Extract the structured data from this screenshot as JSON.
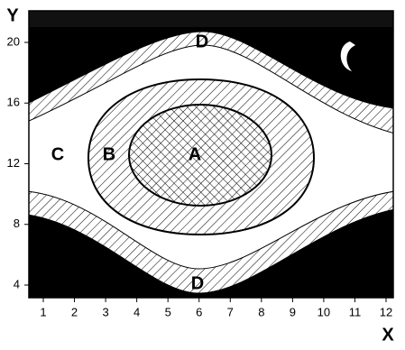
{
  "axes": {
    "x_label": "X",
    "y_label": "Y",
    "xticks": [
      1,
      2,
      3,
      4,
      5,
      6,
      7,
      8,
      9,
      10,
      11,
      12
    ],
    "yticks": [
      4,
      8,
      12,
      16,
      20
    ]
  },
  "regions": [
    {
      "label": "A"
    },
    {
      "label": "B"
    },
    {
      "label": "C"
    },
    {
      "label": "D"
    },
    {
      "label": "D"
    }
  ]
}
